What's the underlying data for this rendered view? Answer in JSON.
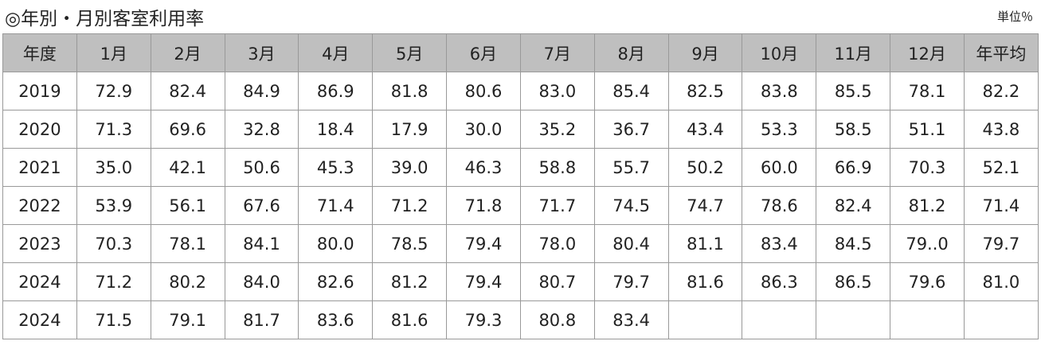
{
  "header": {
    "title": "◎年別・月別客室利用率",
    "unit": "単位％"
  },
  "table": {
    "columns": [
      "年度",
      "1月",
      "2月",
      "3月",
      "4月",
      "5月",
      "6月",
      "7月",
      "8月",
      "9月",
      "10月",
      "11月",
      "12月",
      "年平均"
    ],
    "rows": [
      [
        "2019",
        "72.9",
        "82.4",
        "84.9",
        "86.9",
        "81.8",
        "80.6",
        "83.0",
        "85.4",
        "82.5",
        "83.8",
        "85.5",
        "78.1",
        "82.2"
      ],
      [
        "2020",
        "71.3",
        "69.6",
        "32.8",
        "18.4",
        "17.9",
        "30.0",
        "35.2",
        "36.7",
        "43.4",
        "53.3",
        "58.5",
        "51.1",
        "43.8"
      ],
      [
        "2021",
        "35.0",
        "42.1",
        "50.6",
        "45.3",
        "39.0",
        "46.3",
        "58.8",
        "55.7",
        "50.2",
        "60.0",
        "66.9",
        "70.3",
        "52.1"
      ],
      [
        "2022",
        "53.9",
        "56.1",
        "67.6",
        "71.4",
        "71.2",
        "71.8",
        "71.7",
        "74.5",
        "74.7",
        "78.6",
        "82.4",
        "81.2",
        "71.4"
      ],
      [
        "2023",
        "70.3",
        "78.1",
        "84.1",
        "80.0",
        "78.5",
        "79.4",
        "78.0",
        "80.4",
        "81.1",
        "83.4",
        "84.5",
        "79..0",
        "79.7"
      ],
      [
        "2024",
        "71.2",
        "80.2",
        "84.0",
        "82.6",
        "81.2",
        "79.4",
        "80.7",
        "79.7",
        "81.6",
        "86.3",
        "86.5",
        "79.6",
        "81.0"
      ],
      [
        "2024",
        "71.5",
        "79.1",
        "81.7",
        "83.6",
        "81.6",
        "79.3",
        "80.8",
        "83.4"
      ]
    ]
  }
}
